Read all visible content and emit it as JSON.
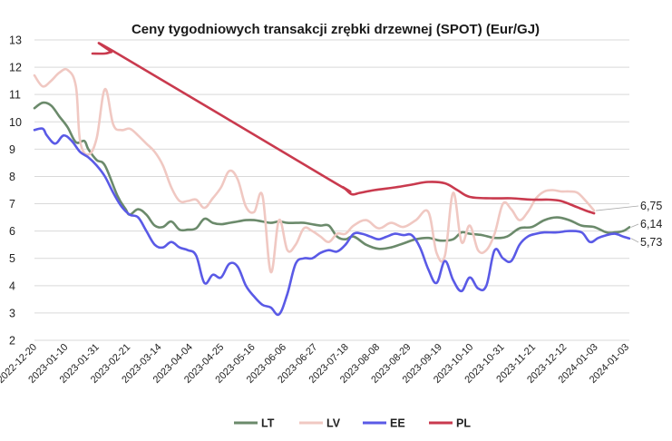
{
  "chart_data": {
    "type": "line",
    "title": "Ceny tygodniowych transakcji zrębki drzewnej (SPOT) (Eur/GJ)",
    "xlabel": "",
    "ylabel": "",
    "ylim": [
      2,
      13
    ],
    "yticks": [
      "2",
      "3",
      "4",
      "5",
      "6",
      "7",
      "8",
      "9",
      "10",
      "11",
      "12",
      "13"
    ],
    "xticks": [
      "2022-12-20",
      "2023-01-10",
      "2023-01-31",
      "2023-02-21",
      "2023-03-14",
      "2023-04-04",
      "2023-04-25",
      "2023-05-16",
      "2023-06-06",
      "2023-06-27",
      "2023-07-18",
      "2023-08-08",
      "2023-08-29",
      "2023-09-19",
      "2023-10-10",
      "2023-10-31",
      "2023-11-21",
      "2023-12-12",
      "2024-01-03",
      "2024-01-03"
    ],
    "grid": true,
    "legend": "bottom",
    "end_labels": [
      {
        "text": "6,75",
        "series": "LV"
      },
      {
        "text": "6,14",
        "series": "LT"
      },
      {
        "text": "5,73",
        "series": "EE"
      }
    ],
    "series": [
      {
        "name": "LT",
        "color": "#6b8a6b",
        "values": [
          [
            0,
            10.5
          ],
          [
            0.4,
            10.7
          ],
          [
            0.8,
            10.6
          ],
          [
            1.2,
            10.2
          ],
          [
            1.6,
            9.8
          ],
          [
            2.0,
            9.25
          ],
          [
            2.4,
            9.3
          ],
          [
            2.6,
            9.0
          ],
          [
            3.0,
            8.6
          ],
          [
            3.4,
            8.4
          ],
          [
            4.0,
            7.3
          ],
          [
            4.4,
            6.8
          ],
          [
            4.6,
            6.6
          ],
          [
            5.0,
            6.8
          ],
          [
            5.4,
            6.6
          ],
          [
            5.8,
            6.2
          ],
          [
            6.2,
            6.15
          ],
          [
            6.6,
            6.35
          ],
          [
            7.0,
            6.05
          ],
          [
            7.4,
            6.05
          ],
          [
            7.8,
            6.1
          ],
          [
            8.2,
            6.45
          ],
          [
            8.6,
            6.3
          ],
          [
            9.0,
            6.25
          ],
          [
            9.4,
            6.3
          ],
          [
            9.8,
            6.35
          ],
          [
            10.2,
            6.4
          ],
          [
            10.6,
            6.4
          ],
          [
            11.0,
            6.35
          ],
          [
            11.4,
            6.3
          ],
          [
            11.8,
            6.35
          ],
          [
            12.2,
            6.3
          ],
          [
            12.6,
            6.3
          ],
          [
            13.0,
            6.3
          ],
          [
            13.4,
            6.25
          ],
          [
            13.8,
            6.2
          ],
          [
            14.2,
            6.2
          ],
          [
            14.6,
            5.8
          ],
          [
            15.0,
            5.7
          ],
          [
            15.4,
            5.8
          ],
          [
            16.0,
            5.5
          ],
          [
            16.6,
            5.35
          ],
          [
            17.2,
            5.4
          ],
          [
            17.8,
            5.55
          ],
          [
            18.4,
            5.7
          ],
          [
            19.0,
            5.75
          ],
          [
            19.6,
            5.65
          ],
          [
            20.2,
            5.7
          ],
          [
            20.6,
            5.95
          ],
          [
            21.0,
            5.9
          ],
          [
            21.6,
            5.85
          ],
          [
            22.2,
            5.75
          ],
          [
            22.8,
            5.8
          ],
          [
            23.4,
            6.1
          ],
          [
            24.0,
            6.15
          ],
          [
            24.6,
            6.4
          ],
          [
            25.2,
            6.5
          ],
          [
            25.8,
            6.4
          ],
          [
            26.4,
            6.2
          ],
          [
            27.0,
            6.15
          ],
          [
            27.6,
            5.95
          ],
          [
            28.0,
            5.95
          ],
          [
            28.4,
            6.0
          ],
          [
            28.7,
            6.14
          ]
        ]
      },
      {
        "name": "LV",
        "color": "#f0c8c2",
        "values": [
          [
            0,
            11.7
          ],
          [
            0.4,
            11.3
          ],
          [
            0.8,
            11.5
          ],
          [
            1.2,
            11.8
          ],
          [
            1.6,
            11.9
          ],
          [
            2.0,
            11.3
          ],
          [
            2.2,
            9.3
          ],
          [
            2.6,
            8.8
          ],
          [
            3.0,
            9.4
          ],
          [
            3.4,
            11.2
          ],
          [
            3.8,
            9.9
          ],
          [
            4.2,
            9.7
          ],
          [
            4.6,
            9.75
          ],
          [
            5.0,
            9.5
          ],
          [
            5.4,
            9.2
          ],
          [
            5.8,
            8.9
          ],
          [
            6.2,
            8.4
          ],
          [
            6.6,
            7.6
          ],
          [
            7.0,
            7.1
          ],
          [
            7.4,
            7.1
          ],
          [
            7.8,
            7.15
          ],
          [
            8.2,
            6.85
          ],
          [
            8.6,
            7.2
          ],
          [
            9.0,
            7.6
          ],
          [
            9.4,
            8.2
          ],
          [
            9.8,
            7.9
          ],
          [
            10.2,
            6.9
          ],
          [
            10.6,
            6.7
          ],
          [
            11.0,
            7.3
          ],
          [
            11.4,
            4.5
          ],
          [
            11.8,
            6.4
          ],
          [
            12.2,
            5.3
          ],
          [
            12.6,
            5.5
          ],
          [
            13.0,
            6.1
          ],
          [
            13.4,
            6.0
          ],
          [
            13.8,
            5.8
          ],
          [
            14.2,
            5.6
          ],
          [
            14.6,
            5.9
          ],
          [
            15.0,
            5.9
          ],
          [
            15.4,
            6.2
          ],
          [
            16.0,
            6.4
          ],
          [
            16.6,
            6.1
          ],
          [
            17.2,
            6.3
          ],
          [
            17.8,
            6.15
          ],
          [
            18.4,
            6.4
          ],
          [
            19.0,
            6.7
          ],
          [
            19.4,
            5.2
          ],
          [
            19.8,
            5.1
          ],
          [
            20.2,
            7.4
          ],
          [
            20.6,
            5.6
          ],
          [
            21.0,
            6.2
          ],
          [
            21.4,
            5.3
          ],
          [
            21.8,
            5.3
          ],
          [
            22.2,
            5.9
          ],
          [
            22.6,
            7.0
          ],
          [
            23.0,
            6.8
          ],
          [
            23.4,
            6.4
          ],
          [
            23.8,
            6.7
          ],
          [
            24.2,
            7.2
          ],
          [
            24.6,
            7.45
          ],
          [
            25.0,
            7.5
          ],
          [
            25.4,
            7.45
          ],
          [
            25.8,
            7.45
          ],
          [
            26.2,
            7.4
          ],
          [
            26.6,
            7.1
          ],
          [
            27.0,
            6.75
          ]
        ]
      },
      {
        "name": "EE",
        "color": "#5a5ae6",
        "values": [
          [
            0,
            9.7
          ],
          [
            0.4,
            9.75
          ],
          [
            0.6,
            9.5
          ],
          [
            1.0,
            9.2
          ],
          [
            1.4,
            9.5
          ],
          [
            1.8,
            9.3
          ],
          [
            2.2,
            8.9
          ],
          [
            2.6,
            8.7
          ],
          [
            3.0,
            8.4
          ],
          [
            3.4,
            8.0
          ],
          [
            3.8,
            7.4
          ],
          [
            4.2,
            6.9
          ],
          [
            4.6,
            6.6
          ],
          [
            5.0,
            6.5
          ],
          [
            5.4,
            6.0
          ],
          [
            5.8,
            5.5
          ],
          [
            6.2,
            5.4
          ],
          [
            6.6,
            5.6
          ],
          [
            7.0,
            5.4
          ],
          [
            7.4,
            5.3
          ],
          [
            7.8,
            5.1
          ],
          [
            8.2,
            4.1
          ],
          [
            8.6,
            4.4
          ],
          [
            9.0,
            4.3
          ],
          [
            9.4,
            4.8
          ],
          [
            9.8,
            4.7
          ],
          [
            10.2,
            4.0
          ],
          [
            10.6,
            3.6
          ],
          [
            11.0,
            3.3
          ],
          [
            11.4,
            3.2
          ],
          [
            11.8,
            2.95
          ],
          [
            12.2,
            3.7
          ],
          [
            12.6,
            4.8
          ],
          [
            13.0,
            5.0
          ],
          [
            13.4,
            5.0
          ],
          [
            13.8,
            5.2
          ],
          [
            14.2,
            5.3
          ],
          [
            14.6,
            5.25
          ],
          [
            15.0,
            5.5
          ],
          [
            15.4,
            5.9
          ],
          [
            15.8,
            5.9
          ],
          [
            16.2,
            5.8
          ],
          [
            16.6,
            5.7
          ],
          [
            17.0,
            5.8
          ],
          [
            17.4,
            5.9
          ],
          [
            17.8,
            5.85
          ],
          [
            18.2,
            5.85
          ],
          [
            18.6,
            5.4
          ],
          [
            19.0,
            4.6
          ],
          [
            19.4,
            4.1
          ],
          [
            19.8,
            4.9
          ],
          [
            20.2,
            4.2
          ],
          [
            20.6,
            3.8
          ],
          [
            21.0,
            4.3
          ],
          [
            21.4,
            3.9
          ],
          [
            21.8,
            4.0
          ],
          [
            22.2,
            5.3
          ],
          [
            22.6,
            5.0
          ],
          [
            23.0,
            4.9
          ],
          [
            23.4,
            5.5
          ],
          [
            23.8,
            5.8
          ],
          [
            24.2,
            5.9
          ],
          [
            24.6,
            5.95
          ],
          [
            25.2,
            5.95
          ],
          [
            25.8,
            6.0
          ],
          [
            26.4,
            5.95
          ],
          [
            26.8,
            5.6
          ],
          [
            27.2,
            5.75
          ],
          [
            27.6,
            5.85
          ],
          [
            28.0,
            5.9
          ],
          [
            28.4,
            5.8
          ],
          [
            28.7,
            5.73
          ]
        ]
      },
      {
        "name": "PL",
        "color": "#c93a4e",
        "values": [
          [
            2.8,
            12.5
          ],
          [
            3.4,
            12.5
          ],
          [
            3.7,
            12.55
          ],
          [
            4.0,
            12.5
          ],
          [
            14.2,
            7.9
          ],
          [
            14.9,
            7.6
          ],
          [
            15.3,
            7.35
          ],
          [
            15.7,
            7.4
          ],
          [
            16.4,
            7.5
          ],
          [
            17.4,
            7.6
          ],
          [
            18.2,
            7.7
          ],
          [
            19.0,
            7.8
          ],
          [
            19.8,
            7.75
          ],
          [
            20.4,
            7.5
          ],
          [
            21.0,
            7.25
          ],
          [
            22.0,
            7.2
          ],
          [
            23.0,
            7.2
          ],
          [
            24.0,
            7.15
          ],
          [
            24.8,
            7.15
          ],
          [
            25.4,
            7.1
          ],
          [
            26.1,
            6.9
          ],
          [
            26.6,
            6.75
          ],
          [
            27.0,
            6.65
          ]
        ]
      }
    ]
  }
}
